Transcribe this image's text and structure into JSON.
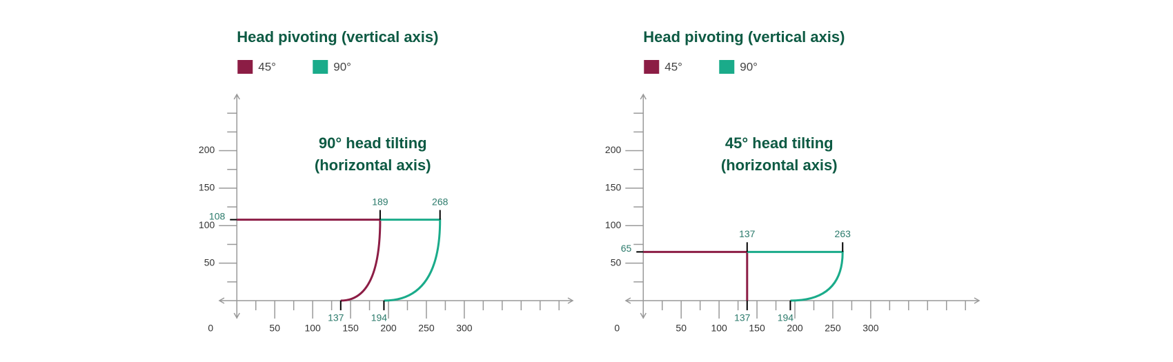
{
  "chart_data": [
    {
      "type": "line",
      "title": "Head pivoting (vertical axis)",
      "annotation": [
        "90° head tilting",
        "(horizontal axis)"
      ],
      "xlim": [
        -23,
        443
      ],
      "ylim": [
        -23,
        275
      ],
      "xticks": [
        0,
        50,
        100,
        150,
        200,
        250,
        300
      ],
      "xminor": [
        25,
        75,
        125,
        175,
        225,
        275,
        325,
        350,
        375,
        400,
        425
      ],
      "yticks": [
        50,
        100,
        150,
        200
      ],
      "yminor": [
        25,
        75,
        125,
        175,
        225,
        250
      ],
      "series": [
        {
          "name": "45°",
          "color": "#8c1d45",
          "x": [
            0,
            189,
            137
          ],
          "values": [
            108,
            108,
            0
          ]
        },
        {
          "name": "90°",
          "color": "#1aab8a",
          "x": [
            189,
            268,
            194
          ],
          "values": [
            108,
            108,
            0
          ]
        }
      ]
    },
    {
      "type": "line",
      "title": "Head pivoting (vertical axis)",
      "annotation": [
        "45° head tilting",
        "(horizontal axis)"
      ],
      "xlim": [
        -23,
        443
      ],
      "ylim": [
        -23,
        275
      ],
      "xticks": [
        0,
        50,
        100,
        150,
        200,
        250,
        300
      ],
      "xminor": [
        25,
        75,
        125,
        175,
        225,
        275,
        325,
        350,
        375,
        400,
        425
      ],
      "yticks": [
        50,
        100,
        150,
        200
      ],
      "yminor": [
        25,
        75,
        125,
        175,
        225,
        250
      ],
      "series": [
        {
          "name": "45°",
          "color": "#8c1d45",
          "x": [
            0,
            137,
            137
          ],
          "values": [
            65,
            65,
            0
          ]
        },
        {
          "name": "90°",
          "color": "#1aab8a",
          "x": [
            137,
            263,
            194
          ],
          "values": [
            65,
            65,
            0
          ]
        }
      ]
    }
  ]
}
